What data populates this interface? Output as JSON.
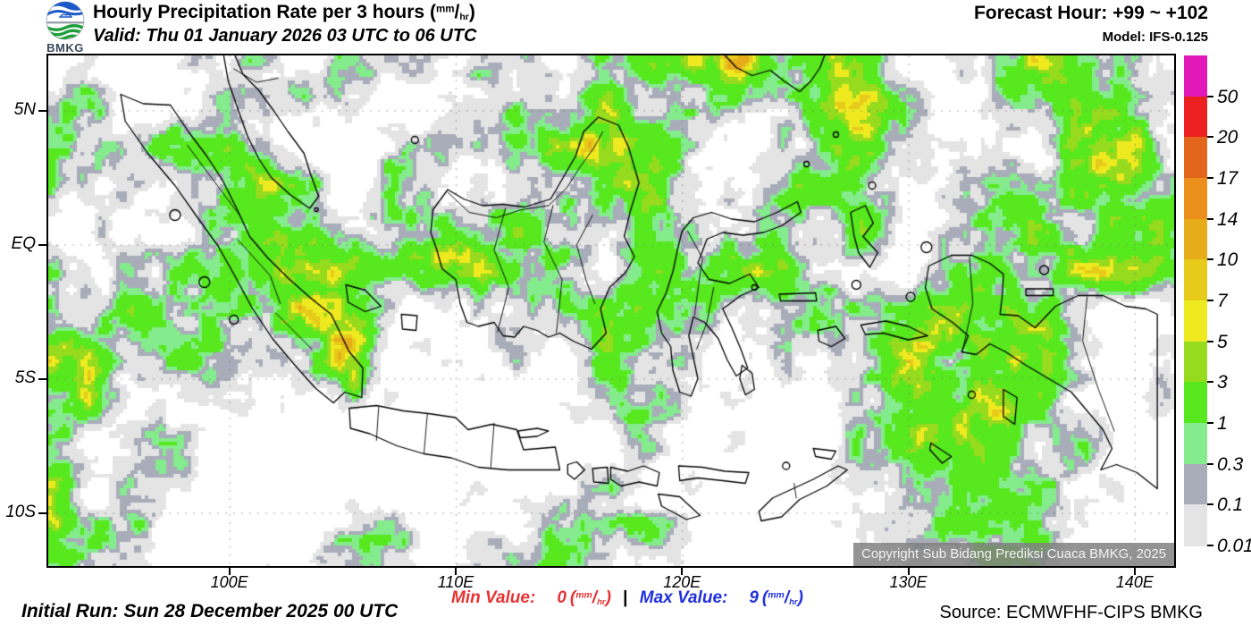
{
  "header": {
    "logo_text": "BMKG",
    "title": "Hourly Precipitation Rate per 3 hours",
    "valid": "Valid: Thu 01 January 2026 03 UTC to 06 UTC",
    "forecast_hour": "Forecast Hour: +99 ~ +102",
    "model": "Model: IFS-0.125"
  },
  "units": {
    "sup": "mm",
    "sub": "hr"
  },
  "map": {
    "copyright": "Copyright Sub Bidang Prediksi Cuaca BMKG, 2025",
    "y_ticks": [
      {
        "label": "5N",
        "lat": 5
      },
      {
        "label": "EQ",
        "lat": 0
      },
      {
        "label": "5S",
        "lat": -5
      },
      {
        "label": "10S",
        "lat": -10
      }
    ],
    "x_ticks": [
      {
        "label": "100E",
        "lon": 100
      },
      {
        "label": "110E",
        "lon": 110
      },
      {
        "label": "120E",
        "lon": 120
      },
      {
        "label": "130E",
        "lon": 130
      },
      {
        "label": "140E",
        "lon": 140
      }
    ]
  },
  "legend": {
    "labels": [
      "50",
      "20",
      "17",
      "14",
      "10",
      "7",
      "5",
      "3",
      "1",
      "0.3",
      "0.1",
      "0.01"
    ],
    "colors": [
      "#e318b8",
      "#ec2020",
      "#e4661c",
      "#ec8f1c",
      "#e6ac1a",
      "#e6cb1a",
      "#efea20",
      "#96db1d",
      "#57e81e",
      "#84ec8c",
      "#a9adba",
      "#e4e4e4"
    ]
  },
  "footer": {
    "initial_run": "Initial Run: Sun 28 December 2025 00 UTC",
    "min_label": "Min Value:",
    "min_value": "0",
    "separator": "|",
    "max_label": "Max Value:",
    "max_value": "9",
    "source": "Source: ECMWFHF-CIPS BMKG",
    "min_color": "#e63232",
    "max_color": "#2230dd"
  },
  "chart_data": {
    "type": "heatmap",
    "title": "Hourly Precipitation Rate per 3 hours (mm/hr)",
    "valid_period": "Thu 01 January 2026 03 UTC to 06 UTC",
    "forecast_hour_range": [
      99,
      102
    ],
    "model": "IFS-0.125",
    "initial_run": "Sun 28 December 2025 00 UTC",
    "min_value_mm_hr": 0,
    "max_value_mm_hr": 9,
    "units": "mm/hr",
    "colorscale_thresholds_mm_hr": [
      0.01,
      0.1,
      0.3,
      1,
      3,
      5,
      7,
      10,
      14,
      17,
      20,
      50
    ],
    "colorscale_colors_low_to_high": [
      "#e4e4e4",
      "#a9adba",
      "#84ec8c",
      "#57e81e",
      "#96db1d",
      "#efea20",
      "#e6cb1a",
      "#e6ac1a",
      "#ec8f1c",
      "#e4661c",
      "#ec2020",
      "#e318b8"
    ],
    "x_axis_ticks": [
      "100E",
      "110E",
      "120E",
      "130E",
      "140E"
    ],
    "y_axis_ticks": [
      "5N",
      "EQ",
      "5S",
      "10S"
    ],
    "lon_range_deg_east": [
      92,
      141.9
    ],
    "lat_range_deg": [
      -12.1,
      7.05
    ],
    "source": "ECMWFHF-CIPS BMKG"
  }
}
